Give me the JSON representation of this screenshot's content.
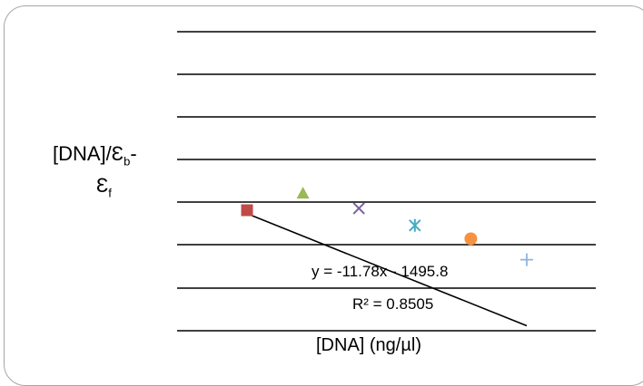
{
  "chart_data": {
    "type": "scatter",
    "xlabel": "[DNA] (ng/µl)",
    "ylabel_main": "[DNA]/Ɛ",
    "ylabel_sub_b": "b",
    "ylabel_dash": "-",
    "ylabel_line2": "Ɛ",
    "ylabel_sub_f": "f",
    "grid": true,
    "legend": "none",
    "points": [
      {
        "marker": "square",
        "color": "#be4b48",
        "x": 0,
        "y": -1494
      },
      {
        "marker": "triangle",
        "color": "#98b954",
        "x": 1,
        "y": -1485
      },
      {
        "marker": "x",
        "color": "#7d5fa0",
        "x": 2,
        "y": -1493
      },
      {
        "marker": "star",
        "color": "#46aac5",
        "x": 3,
        "y": -1502
      },
      {
        "marker": "circle",
        "color": "#f69240",
        "x": 4,
        "y": -1509
      },
      {
        "marker": "plus",
        "color": "#8eb4e3",
        "x": 5,
        "y": -1520
      }
    ],
    "trendline": {
      "slope": -11.78,
      "intercept": -1495.8
    },
    "equation": "y = -11.78x - 1495.8",
    "r_squared": "R² = 0.8505"
  }
}
